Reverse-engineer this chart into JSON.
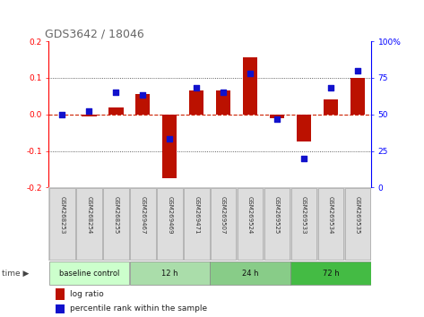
{
  "title": "GDS3642 / 18046",
  "samples": [
    "GSM268253",
    "GSM268254",
    "GSM268255",
    "GSM269467",
    "GSM269469",
    "GSM269471",
    "GSM269507",
    "GSM269524",
    "GSM269525",
    "GSM269533",
    "GSM269534",
    "GSM269535"
  ],
  "log_ratio": [
    0.0,
    -0.005,
    0.02,
    0.055,
    -0.175,
    0.065,
    0.065,
    0.155,
    -0.01,
    -0.075,
    0.04,
    0.1
  ],
  "percentile": [
    50,
    52,
    65,
    63,
    33,
    68,
    65,
    78,
    47,
    20,
    68,
    80
  ],
  "groups": [
    {
      "label": "baseline control",
      "start": 0,
      "end": 3,
      "color": "#ccffcc"
    },
    {
      "label": "12 h",
      "start": 3,
      "end": 6,
      "color": "#aaddaa"
    },
    {
      "label": "24 h",
      "start": 6,
      "end": 9,
      "color": "#88cc88"
    },
    {
      "label": "72 h",
      "start": 9,
      "end": 12,
      "color": "#44bb44"
    }
  ],
  "ylim_left": [
    -0.2,
    0.2
  ],
  "ylim_right": [
    0,
    100
  ],
  "yticks_left": [
    -0.2,
    -0.1,
    0.0,
    0.1,
    0.2
  ],
  "yticks_right": [
    0,
    25,
    50,
    75,
    100
  ],
  "ytick_labels_right": [
    "0",
    "25",
    "50",
    "75",
    "100%"
  ],
  "bar_color": "#bb1100",
  "dot_color": "#1111cc",
  "zero_line_color": "#cc2200",
  "bg_color": "#ffffff",
  "xlabel_area_color": "#cccccc",
  "bar_width": 0.55,
  "dot_size": 18
}
